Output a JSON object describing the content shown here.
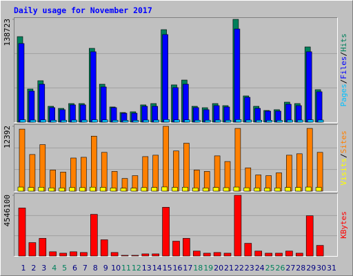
{
  "title": "Daily usage for November 2017",
  "chart_data": [
    {
      "type": "bar",
      "ylim": [
        0,
        138723
      ],
      "yticks": [
        138723
      ],
      "legend_separator": "/",
      "series": [
        {
          "name": "Hits",
          "color": "#00805c",
          "values": [
            115400,
            44700,
            55900,
            21400,
            18600,
            25100,
            25100,
            99600,
            51200,
            20500,
            13000,
            14000,
            23300,
            25100,
            124800,
            50300,
            56800,
            21400,
            19500,
            25100,
            22300,
            138723,
            35400,
            21400,
            15800,
            16800,
            27000,
            25100,
            101500,
            43800,
            null
          ]
        },
        {
          "name": "Files",
          "color": "#0000ff",
          "values": [
            106100,
            41900,
            51200,
            19600,
            16800,
            23300,
            23300,
            95000,
            47500,
            19600,
            12100,
            12100,
            21400,
            21400,
            118200,
            46600,
            51200,
            19600,
            16800,
            22300,
            20500,
            125700,
            33500,
            18600,
            14900,
            14900,
            24200,
            22300,
            95000,
            41000,
            null
          ]
        },
        {
          "name": "Pages",
          "color": "#00c0ff",
          "values": [
            3200,
            2800,
            3000,
            2600,
            2600,
            2800,
            2800,
            3200,
            3000,
            2600,
            2400,
            2400,
            2800,
            2800,
            3400,
            3000,
            3000,
            2600,
            2600,
            2800,
            2600,
            3400,
            2800,
            2600,
            2400,
            2400,
            2800,
            2800,
            3200,
            2800,
            null
          ]
        }
      ]
    },
    {
      "type": "bar",
      "ylim": [
        0,
        12392
      ],
      "yticks": [
        12392
      ],
      "legend_separator": "/",
      "series": [
        {
          "name": "Sites",
          "color": "#ff8000",
          "values": [
            11850,
            7000,
            8890,
            4040,
            3640,
            6330,
            6470,
            10510,
            7410,
            3770,
            2420,
            2960,
            6600,
            6870,
            12392,
            7680,
            9160,
            4040,
            3770,
            6740,
            5660,
            11990,
            4450,
            3100,
            2960,
            3500,
            6870,
            7140,
            11990,
            7410,
            null
          ]
        },
        {
          "name": "Visits",
          "color": "#ffff00",
          "values": [
            780,
            700,
            740,
            620,
            600,
            680,
            680,
            760,
            720,
            600,
            560,
            580,
            680,
            700,
            800,
            720,
            740,
            620,
            600,
            700,
            660,
            780,
            640,
            600,
            580,
            600,
            700,
            700,
            780,
            720,
            null
          ]
        }
      ]
    },
    {
      "type": "bar",
      "ylim": [
        0,
        4546100
      ],
      "yticks": [
        4546100
      ],
      "series": [
        {
          "name": "KBytes",
          "color": "#ff0000",
          "values": [
            3594000,
            1004000,
            1322000,
            317000,
            211000,
            317000,
            264000,
            3119000,
            1216000,
            264000,
            53000,
            53000,
            159000,
            159000,
            3647000,
            1110000,
            1322000,
            370000,
            211000,
            264000,
            211000,
            4546100,
            951000,
            370000,
            211000,
            211000,
            370000,
            211000,
            3013000,
            793000,
            null
          ]
        }
      ],
      "categories": [
        "1",
        "2",
        "3",
        "4",
        "5",
        "6",
        "7",
        "8",
        "9",
        "10",
        "11",
        "12",
        "13",
        "14",
        "15",
        "16",
        "17",
        "18",
        "19",
        "20",
        "21",
        "22",
        "23",
        "24",
        "25",
        "26",
        "27",
        "28",
        "29",
        "30",
        "31"
      ],
      "category_colors": [
        "#000080",
        "#000080",
        "#000080",
        "#00805c",
        "#00805c",
        "#000080",
        "#000080",
        "#000080",
        "#000080",
        "#000080",
        "#00805c",
        "#00805c",
        "#000080",
        "#000080",
        "#000080",
        "#000080",
        "#000080",
        "#00805c",
        "#00805c",
        "#000080",
        "#000080",
        "#000080",
        "#000080",
        "#000080",
        "#00805c",
        "#00805c",
        "#000080",
        "#000080",
        "#000080",
        "#000080",
        "#000080"
      ]
    }
  ]
}
